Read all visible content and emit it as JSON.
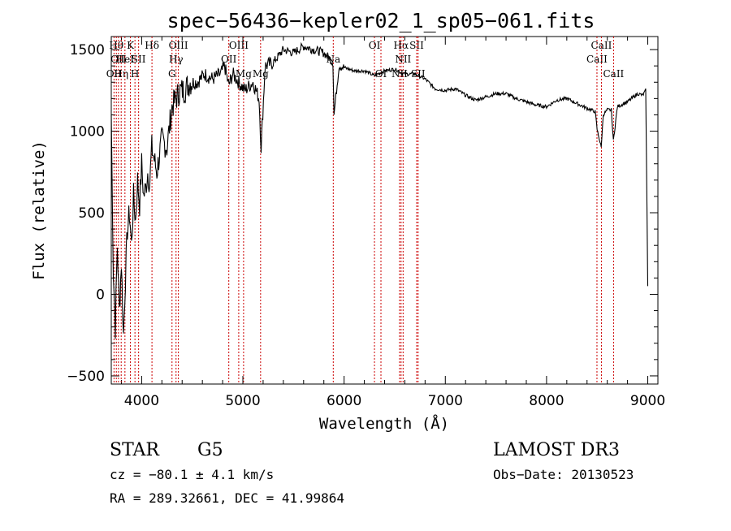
{
  "chart_data": {
    "type": "line",
    "title": "spec−56436−kepler02_1_sp05−061.fits",
    "xlabel": "Wavelength (Å)",
    "ylabel": "Flux (relative)",
    "xlim": [
      3700,
      9100
    ],
    "ylim": [
      -550,
      1580
    ],
    "x_ticks": [
      4000,
      5000,
      6000,
      7000,
      8000,
      9000
    ],
    "y_ticks": [
      -500,
      0,
      500,
      1000,
      1500
    ],
    "x_tick_labels": [
      "4000",
      "5000",
      "6000",
      "7000",
      "8000",
      "9000"
    ],
    "y_tick_labels": [
      "−500",
      "0",
      "500",
      "1000",
      "1500"
    ],
    "series": [
      {
        "name": "flux",
        "x": [
          3700,
          3720,
          3740,
          3760,
          3780,
          3800,
          3820,
          3840,
          3860,
          3880,
          3900,
          3920,
          3940,
          3960,
          3980,
          4000,
          4020,
          4040,
          4060,
          4080,
          4100,
          4150,
          4200,
          4250,
          4300,
          4340,
          4380,
          4420,
          4480,
          4550,
          4620,
          4700,
          4780,
          4820,
          4860,
          4900,
          4960,
          5020,
          5100,
          5160,
          5180,
          5220,
          5300,
          5400,
          5500,
          5600,
          5700,
          5800,
          5850,
          5890,
          5900,
          5950,
          6000,
          6100,
          6200,
          6300,
          6400,
          6500,
          6560,
          6600,
          6700,
          6800,
          6900,
          7000,
          7100,
          7200,
          7300,
          7400,
          7500,
          7600,
          7700,
          7800,
          7900,
          8000,
          8100,
          8200,
          8300,
          8400,
          8480,
          8500,
          8540,
          8560,
          8600,
          8640,
          8660,
          8700,
          8800,
          8900,
          8950,
          8980,
          9000
        ],
        "y": [
          1100,
          150,
          -200,
          300,
          -100,
          200,
          -250,
          100,
          400,
          500,
          300,
          600,
          450,
          700,
          550,
          800,
          600,
          650,
          750,
          680,
          900,
          750,
          950,
          900,
          1150,
          1200,
          1250,
          1250,
          1300,
          1300,
          1350,
          1320,
          1350,
          1400,
          1280,
          1350,
          1300,
          1250,
          1300,
          1200,
          900,
          1400,
          1420,
          1500,
          1480,
          1520,
          1500,
          1480,
          1450,
          1420,
          1100,
          1400,
          1390,
          1370,
          1370,
          1340,
          1370,
          1380,
          1360,
          1350,
          1350,
          1320,
          1260,
          1250,
          1260,
          1220,
          1190,
          1210,
          1230,
          1230,
          1200,
          1180,
          1160,
          1150,
          1190,
          1200,
          1170,
          1140,
          1120,
          1010,
          900,
          1100,
          1130,
          1130,
          940,
          1150,
          1180,
          1230,
          1220,
          1250,
          50
        ]
      }
    ],
    "spectral_lines": [
      {
        "wavelength": 3727,
        "label": "OII",
        "row": 3
      },
      {
        "wavelength": 3750,
        "label": "Hθ",
        "row": 1
      },
      {
        "wavelength": 3771,
        "label": "OII",
        "row": 2
      },
      {
        "wavelength": 3798,
        "label": "Hη",
        "row": 3
      },
      {
        "wavelength": 3835,
        "label": "HeI",
        "row": 2
      },
      {
        "wavelength": 3889,
        "label": "K",
        "row": 1
      },
      {
        "wavelength": 3934,
        "label": "H",
        "row": 3
      },
      {
        "wavelength": 3970,
        "label": "SII",
        "row": 2
      },
      {
        "wavelength": 4102,
        "label": "Hδ",
        "row": 1
      },
      {
        "wavelength": 4300,
        "label": "G",
        "row": 3
      },
      {
        "wavelength": 4340,
        "label": "Hγ",
        "row": 2
      },
      {
        "wavelength": 4363,
        "label": "OIII",
        "row": 1
      },
      {
        "wavelength": 4861,
        "label": "OII",
        "row": 2
      },
      {
        "wavelength": 4959,
        "label": "OIII",
        "row": 1
      },
      {
        "wavelength": 5007,
        "label": "Mg",
        "row": 3
      },
      {
        "wavelength": 5175,
        "label": "Mg",
        "row": 3
      },
      {
        "wavelength": 5893,
        "label": "Na",
        "row": 2
      },
      {
        "wavelength": 6300,
        "label": "OI",
        "row": 1
      },
      {
        "wavelength": 6364,
        "label": "OI",
        "row": 3
      },
      {
        "wavelength": 6548,
        "label": "NII",
        "row": 3
      },
      {
        "wavelength": 6563,
        "label": "Hα",
        "row": 1
      },
      {
        "wavelength": 6583,
        "label": "NII",
        "row": 2
      },
      {
        "wavelength": 6717,
        "label": "SII",
        "row": 1
      },
      {
        "wavelength": 6731,
        "label": "SII",
        "row": 3
      },
      {
        "wavelength": 8498,
        "label": "CaII",
        "row": 2
      },
      {
        "wavelength": 8542,
        "label": "CaII",
        "row": 1
      },
      {
        "wavelength": 8662,
        "label": "CaII",
        "row": 3
      }
    ]
  },
  "info": {
    "object_class": "STAR",
    "subclass": "G5",
    "survey": "LAMOST DR3",
    "cz": "cz = −80.1 ± 4.1 km/s",
    "obs_date": "Obs−Date: 20130523",
    "coords": "RA = 289.32661, DEC =  41.99864"
  }
}
